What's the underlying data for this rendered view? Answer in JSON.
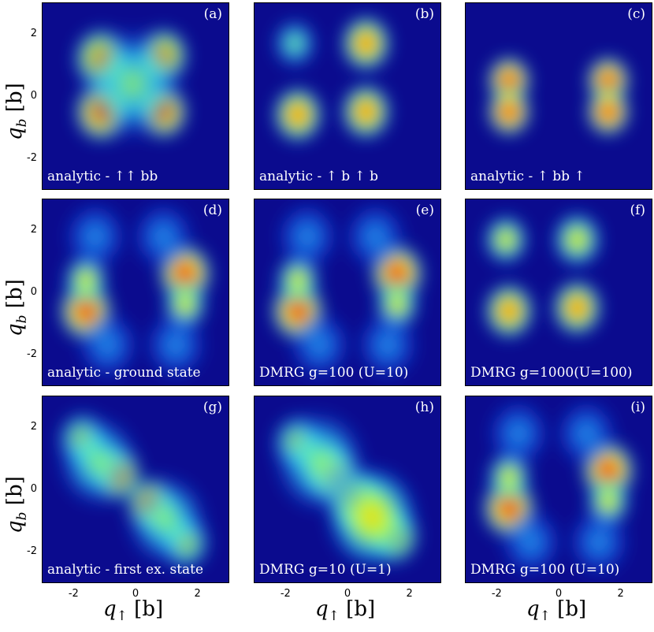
{
  "chart_data": {
    "type": "heatmap",
    "colormap": "jet",
    "x_axis": {
      "ticks": [
        "-2",
        "0",
        "2"
      ],
      "range": [
        -3,
        3
      ],
      "label_symbol": "q",
      "label_subscript": "↑",
      "label_unit": "[b]"
    },
    "y_axis": {
      "ticks": [
        "2",
        "0",
        "-2"
      ],
      "range": [
        -3,
        3
      ],
      "label_symbol": "q",
      "label_subscript": "b",
      "label_unit": "[b]"
    },
    "panels": [
      {
        "tag": "(a)",
        "caption": "analytic - ↑↑ bb",
        "blobs": [
          [
            -1.1,
            1.2,
            0.55,
            0.85
          ],
          [
            0.9,
            1.3,
            0.5,
            0.85
          ],
          [
            -1.1,
            -0.5,
            0.55,
            0.95
          ],
          [
            0.9,
            -0.5,
            0.5,
            1.0
          ],
          [
            -0.1,
            0.4,
            1.0,
            0.45
          ]
        ]
      },
      {
        "tag": "(b)",
        "caption": "analytic - ↑ b ↑ b",
        "blobs": [
          [
            -1.7,
            1.7,
            0.45,
            0.55
          ],
          [
            0.6,
            1.7,
            0.5,
            0.8
          ],
          [
            -1.6,
            -0.6,
            0.5,
            0.85
          ],
          [
            0.6,
            -0.5,
            0.5,
            0.9
          ]
        ]
      },
      {
        "tag": "(c)",
        "caption": "analytic - ↑ bb ↑",
        "blobs": [
          [
            -1.6,
            0.5,
            0.45,
            0.95
          ],
          [
            -1.6,
            -0.5,
            0.45,
            1.0
          ],
          [
            1.6,
            0.5,
            0.45,
            0.95
          ],
          [
            1.6,
            -0.5,
            0.45,
            1.0
          ]
        ]
      },
      {
        "tag": "(d)",
        "caption": "analytic - ground state",
        "blobs": [
          [
            -1.6,
            -0.6,
            0.55,
            1.0
          ],
          [
            1.6,
            0.6,
            0.55,
            1.0
          ],
          [
            -1.6,
            0.4,
            0.45,
            0.7
          ],
          [
            1.6,
            -0.4,
            0.45,
            0.7
          ],
          [
            -1.3,
            1.8,
            0.6,
            0.35
          ],
          [
            0.9,
            1.8,
            0.6,
            0.35
          ],
          [
            -0.9,
            -1.7,
            0.6,
            0.35
          ],
          [
            1.3,
            -1.7,
            0.6,
            0.35
          ]
        ]
      },
      {
        "tag": "(e)",
        "caption": "DMRG g=100 (U=10)",
        "blobs": [
          [
            -1.6,
            -0.6,
            0.55,
            1.0
          ],
          [
            1.6,
            0.6,
            0.55,
            1.0
          ],
          [
            -1.6,
            0.4,
            0.45,
            0.7
          ],
          [
            1.6,
            -0.4,
            0.45,
            0.7
          ],
          [
            -1.3,
            1.8,
            0.6,
            0.35
          ],
          [
            0.9,
            1.8,
            0.6,
            0.35
          ],
          [
            -0.9,
            -1.7,
            0.6,
            0.35
          ],
          [
            1.3,
            -1.7,
            0.6,
            0.35
          ]
        ]
      },
      {
        "tag": "(f)",
        "caption": "DMRG g=1000(U=100)",
        "blobs": [
          [
            -1.7,
            1.7,
            0.45,
            0.6
          ],
          [
            0.6,
            1.7,
            0.5,
            0.75
          ],
          [
            -1.6,
            -0.6,
            0.5,
            0.8
          ],
          [
            0.6,
            -0.5,
            0.5,
            0.85
          ]
        ]
      },
      {
        "tag": "(g)",
        "caption": "analytic - first ex. state",
        "blobs": [
          [
            -0.6,
            0.5,
            0.5,
            1.0
          ],
          [
            0.5,
            -0.5,
            0.5,
            1.0
          ],
          [
            -1.7,
            1.6,
            0.5,
            0.65
          ],
          [
            1.6,
            -1.7,
            0.5,
            0.65
          ],
          [
            -1.2,
            0.9,
            0.8,
            0.45
          ],
          [
            1.0,
            -1.0,
            0.8,
            0.45
          ]
        ]
      },
      {
        "tag": "(h)",
        "caption": "DMRG g=10 (U=1)",
        "blobs": [
          [
            -0.5,
            0.5,
            0.55,
            1.0
          ],
          [
            0.3,
            -0.4,
            0.6,
            1.1
          ],
          [
            1.5,
            -1.5,
            0.5,
            0.9
          ],
          [
            -1.6,
            1.5,
            0.5,
            0.6
          ],
          [
            -0.9,
            0.9,
            0.9,
            0.55
          ],
          [
            0.8,
            -0.9,
            0.9,
            0.6
          ]
        ]
      },
      {
        "tag": "(i)",
        "caption": "DMRG g=100 (U=10)",
        "blobs": [
          [
            -1.6,
            -0.6,
            0.55,
            1.0
          ],
          [
            1.6,
            0.6,
            0.55,
            1.0
          ],
          [
            -1.6,
            0.4,
            0.45,
            0.7
          ],
          [
            1.6,
            -0.4,
            0.45,
            0.7
          ],
          [
            -1.3,
            1.8,
            0.6,
            0.35
          ],
          [
            0.9,
            1.8,
            0.6,
            0.35
          ],
          [
            -0.9,
            -1.7,
            0.6,
            0.35
          ],
          [
            1.3,
            -1.7,
            0.6,
            0.35
          ]
        ]
      }
    ]
  }
}
